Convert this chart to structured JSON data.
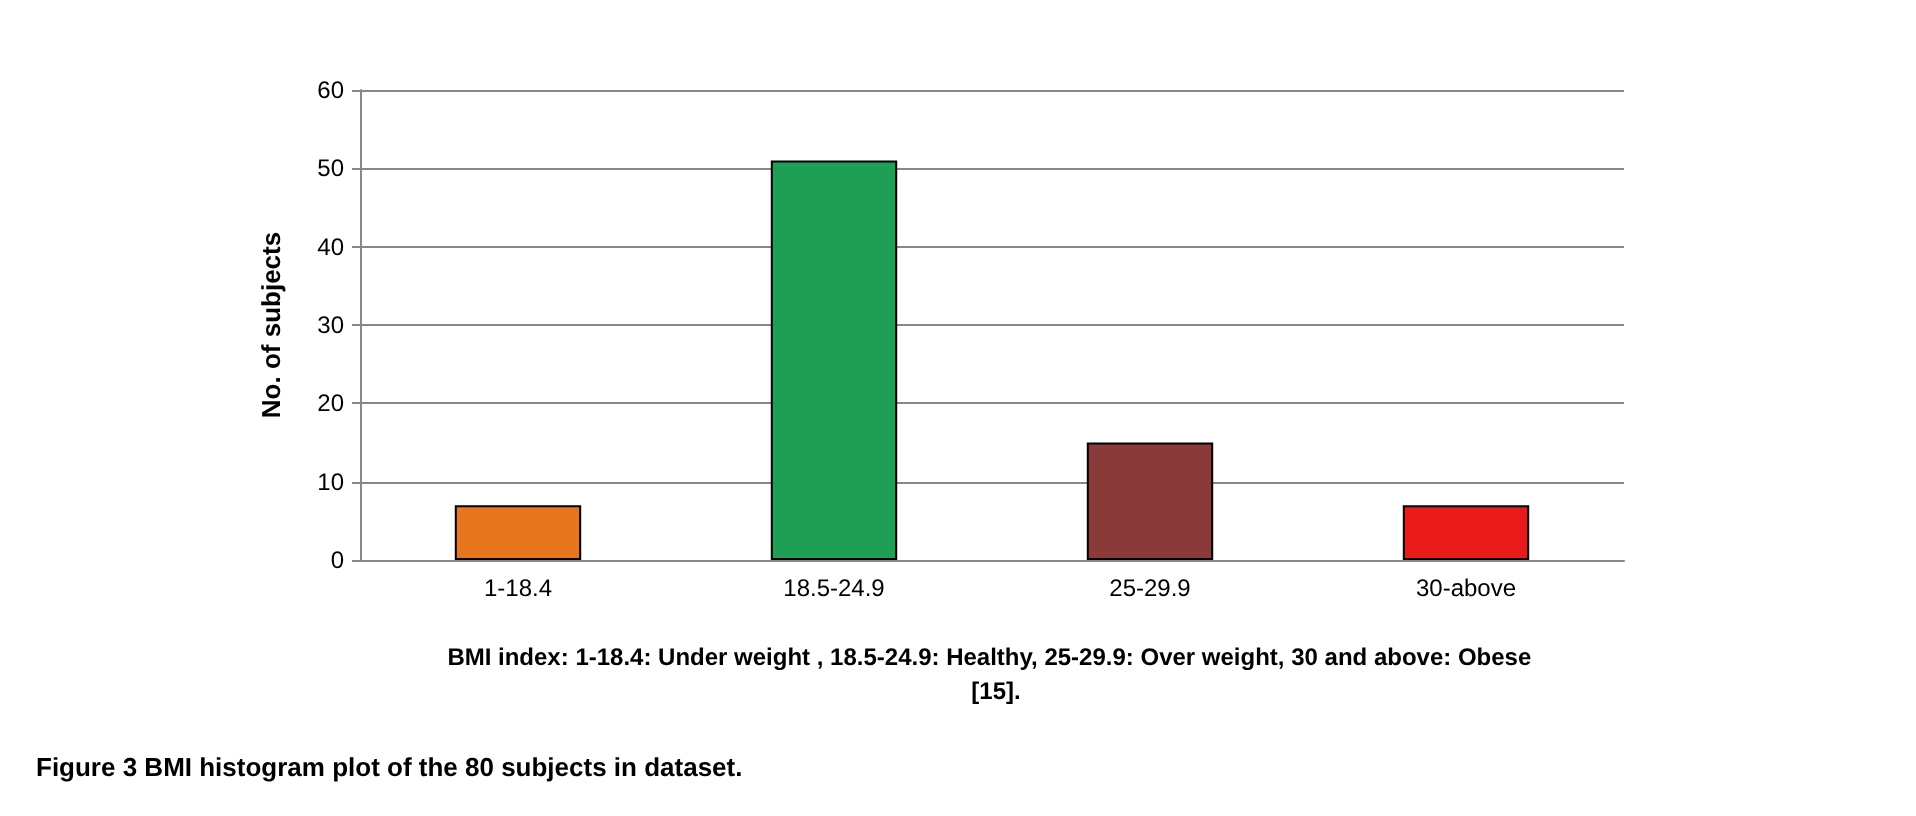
{
  "chart_data": {
    "type": "bar",
    "categories": [
      "1-18.4",
      "18.5-24.9",
      "25-29.9",
      "30-above"
    ],
    "values": [
      7,
      51,
      15,
      7
    ],
    "colors": [
      "#e8761e",
      "#1f9e55",
      "#8b3a3a",
      "#e81a1a"
    ],
    "ylabel": "No. of subjects",
    "xlabel": "BMI index: 1-18.4: Under weight , 18.5-24.9: Healthy, 25-29.9: Over weight, 30 and above: Obese  [15].",
    "ylim": [
      0,
      60
    ],
    "yticks": [
      0,
      10,
      20,
      30,
      40,
      50,
      60
    ],
    "grid": "y",
    "annotations": [
      "Figure 3 BMI histogram plot of the 80 subjects in dataset."
    ]
  }
}
